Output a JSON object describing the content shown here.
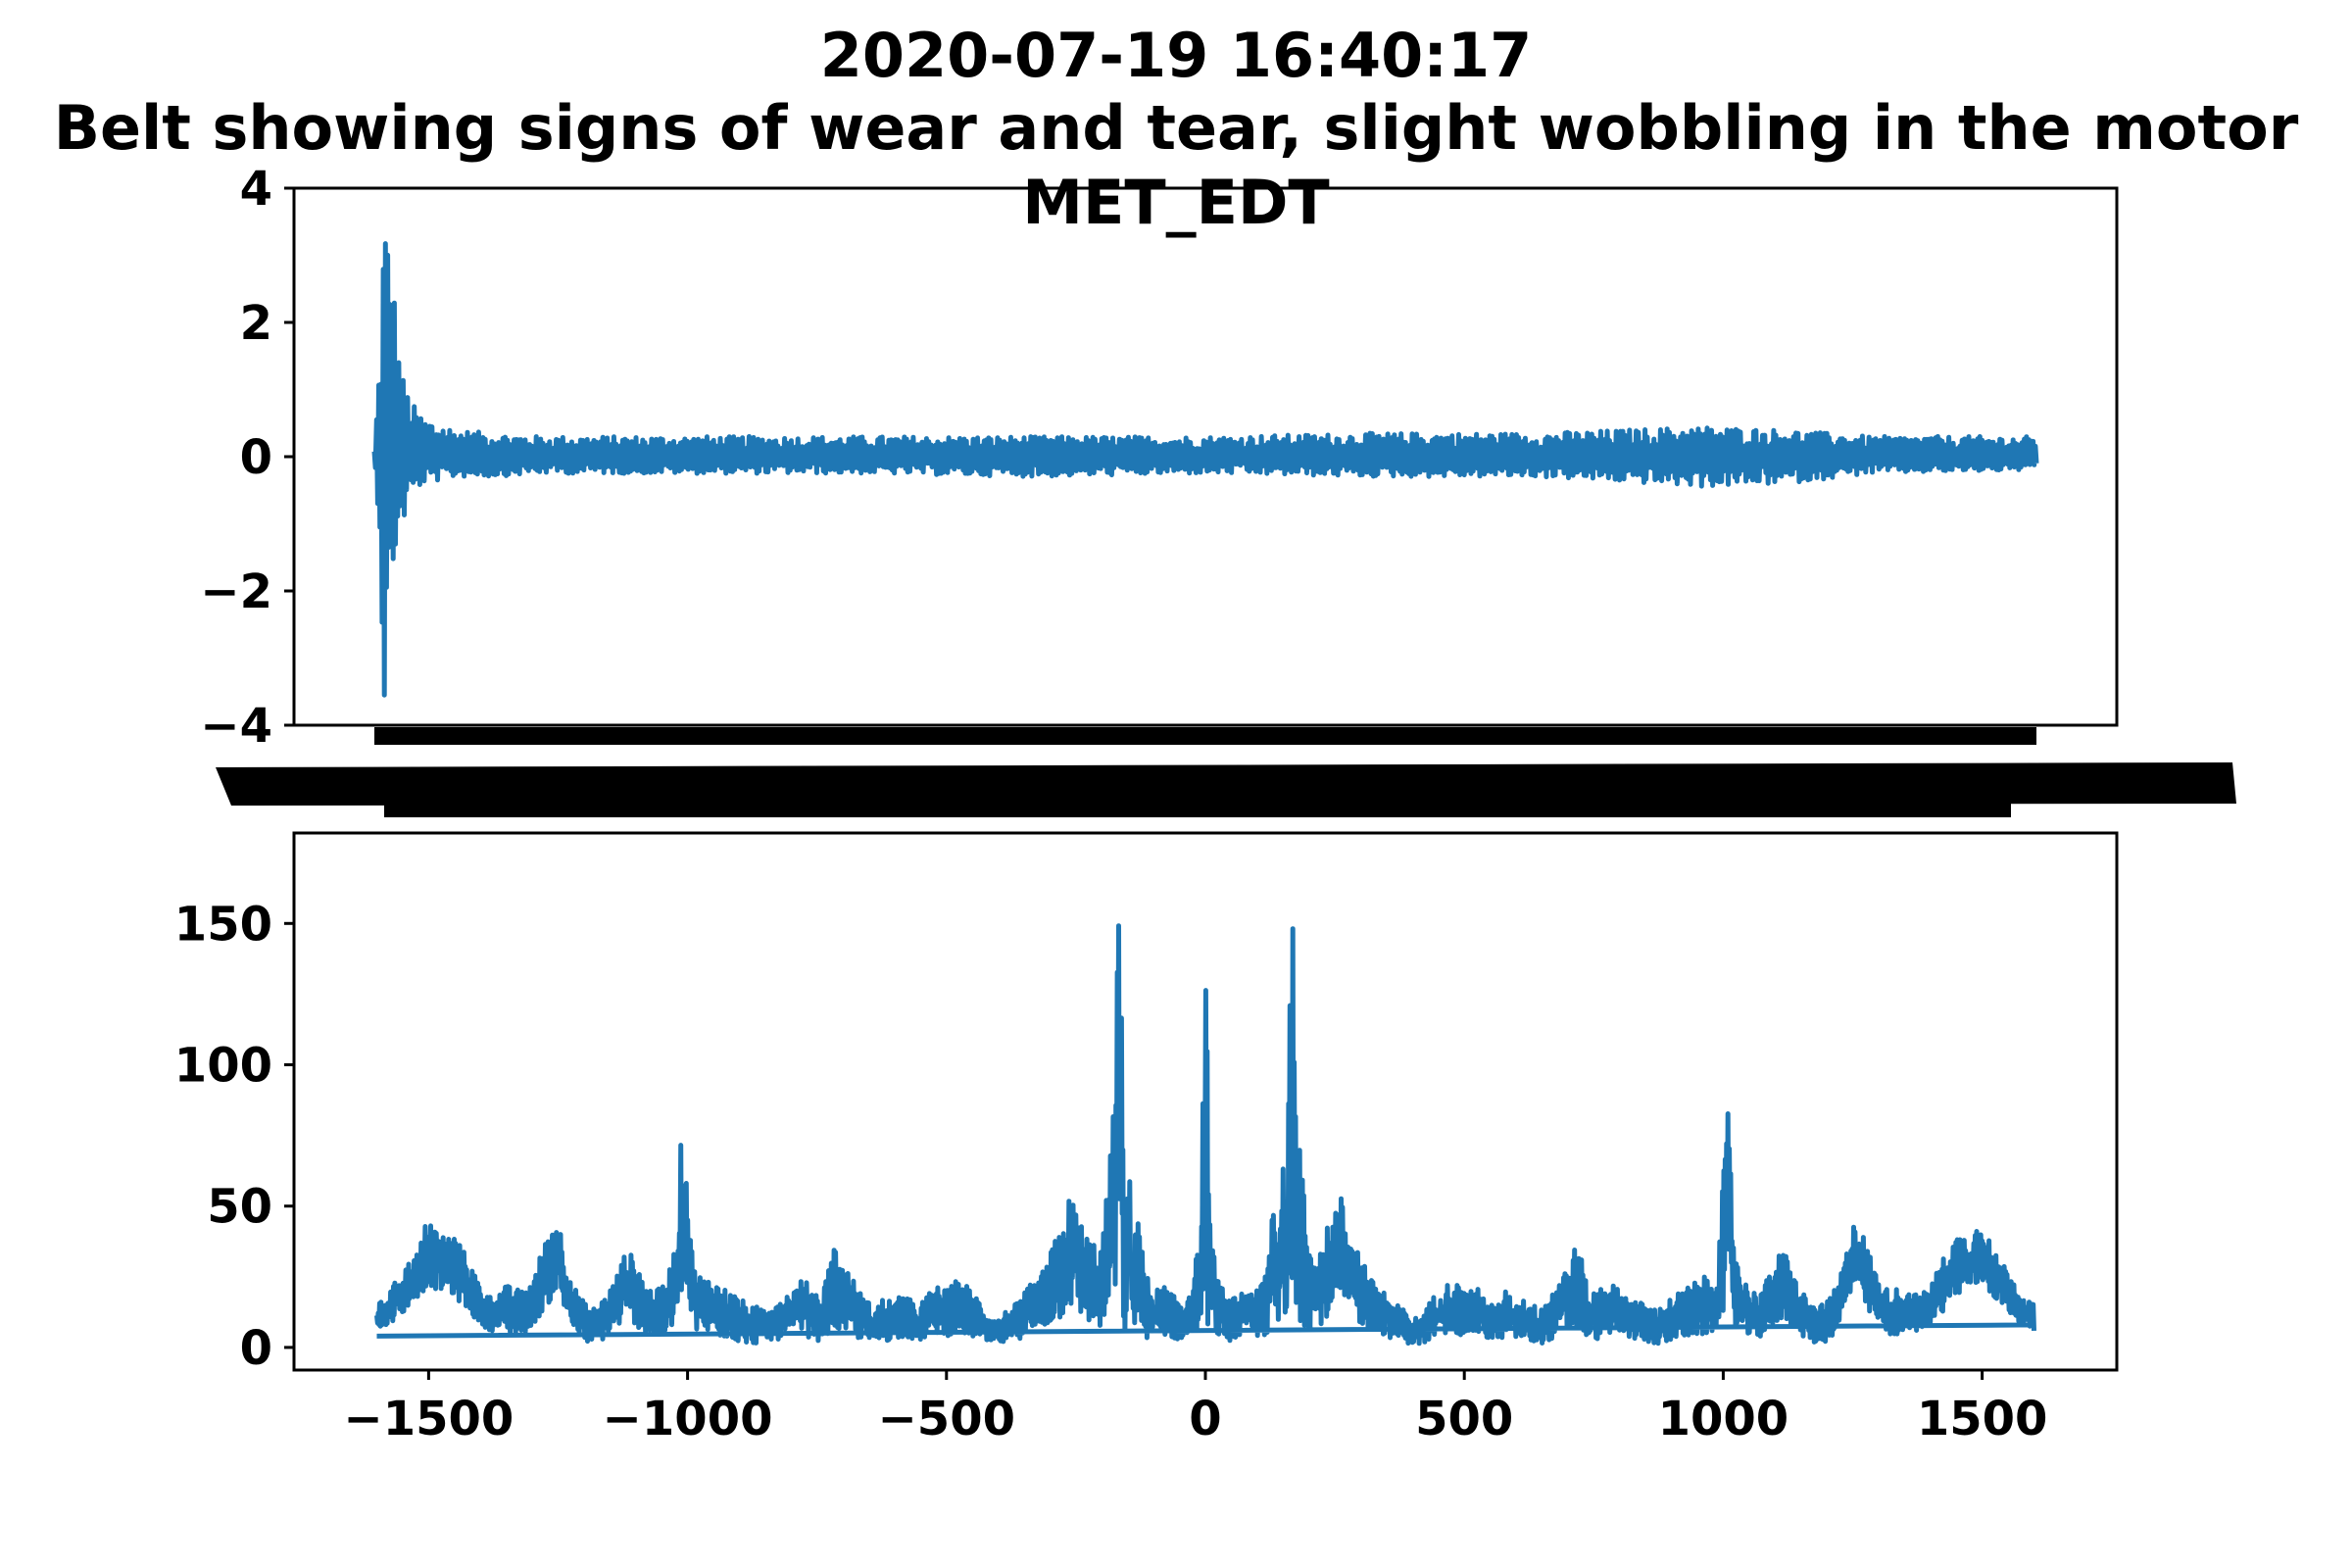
{
  "figure": {
    "title_line1": "2020-07-19 16:40:17",
    "title_line2": "Belt showing signs of wear and tear, slight wobbling in the motor",
    "title_line3": "MET_EDT"
  },
  "chart_data": [
    {
      "type": "line",
      "panel": "top",
      "title": "",
      "xlabel": "",
      "ylabel": "",
      "ylim": [
        -4,
        4
      ],
      "yticks": [
        -4,
        -2,
        0,
        2,
        4
      ],
      "ytick_labels": [
        "−4",
        "−2",
        "0",
        "2",
        "4"
      ],
      "xtick_labels_note": "x tick labels are overlapping and illegible (rendered as a solid black band)",
      "grid": false,
      "legend": "none",
      "color": "#1f77b4",
      "series": [
        {
          "envelope": {
            "x": [
              0,
              0.003,
              0.006,
              0.009,
              0.012,
              0.016,
              0.02,
              0.025,
              0.03,
              0.04,
              0.05,
              0.07,
              0.1,
              0.2,
              0.3,
              0.4,
              0.5,
              0.6,
              0.7,
              0.8,
              0.85,
              0.9,
              1.0
            ],
            "upper": [
              0.1,
              1.5,
              4.0,
              3.2,
              2.5,
              1.3,
              1.0,
              0.7,
              0.6,
              0.5,
              0.4,
              0.35,
              0.3,
              0.3,
              0.3,
              0.3,
              0.3,
              0.35,
              0.35,
              0.45,
              0.4,
              0.3,
              0.3
            ],
            "lower": [
              -0.1,
              -1.0,
              -4.0,
              -2.7,
              -1.5,
              -1.2,
              -0.7,
              -0.5,
              -0.4,
              -0.35,
              -0.3,
              -0.3,
              -0.25,
              -0.25,
              -0.25,
              -0.3,
              -0.25,
              -0.3,
              -0.3,
              -0.45,
              -0.4,
              -0.25,
              -0.2
            ]
          }
        }
      ]
    },
    {
      "type": "line",
      "panel": "bottom",
      "title": "",
      "xlabel": "",
      "ylabel": "",
      "xlim": [
        -1760,
        1760
      ],
      "ylim": [
        -8,
        182
      ],
      "xticks": [
        -1500,
        -1000,
        -500,
        0,
        500,
        1000,
        1500
      ],
      "xtick_labels": [
        "−1500",
        "−1000",
        "−500",
        "0",
        "500",
        "1000",
        "1500"
      ],
      "yticks": [
        0,
        50,
        100,
        150
      ],
      "ytick_labels": [
        "0",
        "50",
        "100",
        "150"
      ],
      "grid": false,
      "legend": "none",
      "color": "#1f77b4",
      "series": [
        {
          "baseline": {
            "x": [
              -1600,
              1600
            ],
            "y": [
              4,
              8
            ]
          },
          "envelope": {
            "x": [
              -1600,
              -1580,
              -1550,
              -1520,
              -1500,
              -1480,
              -1450,
              -1420,
              -1400,
              -1380,
              -1350,
              -1320,
              -1300,
              -1280,
              -1260,
              -1250,
              -1240,
              -1220,
              -1200,
              -1180,
              -1160,
              -1140,
              -1120,
              -1100,
              -1080,
              -1060,
              -1040,
              -1020,
              -1010,
              -1000,
              -990,
              -980,
              -950,
              -920,
              -900,
              -880,
              -850,
              -820,
              -800,
              -780,
              -760,
              -740,
              -720,
              -700,
              -680,
              -660,
              -640,
              -620,
              -600,
              -580,
              -560,
              -540,
              -520,
              -500,
              -480,
              -460,
              -440,
              -420,
              -400,
              -380,
              -360,
              -340,
              -320,
              -300,
              -280,
              -260,
              -250,
              -240,
              -220,
              -200,
              -180,
              -165,
              -160,
              -155,
              -150,
              -140,
              -130,
              -120,
              -110,
              -100,
              -80,
              -60,
              -40,
              -20,
              -10,
              0,
              10,
              20,
              40,
              60,
              80,
              100,
              110,
              120,
              130,
              140,
              150,
              155,
              160,
              165,
              180,
              200,
              220,
              240,
              250,
              260,
              280,
              300,
              320,
              340,
              360,
              380,
              400,
              420,
              440,
              460,
              480,
              500,
              520,
              540,
              560,
              580,
              600,
              620,
              640,
              660,
              680,
              700,
              720,
              740,
              760,
              780,
              800,
              820,
              850,
              880,
              900,
              920,
              950,
              980,
              990,
              1000,
              1010,
              1020,
              1040,
              1060,
              1080,
              1100,
              1120,
              1140,
              1160,
              1180,
              1200,
              1220,
              1240,
              1250,
              1260,
              1280,
              1300,
              1320,
              1350,
              1380,
              1400,
              1420,
              1450,
              1480,
              1500,
              1520,
              1550,
              1580,
              1600
            ],
            "upper": [
              15,
              18,
              28,
              34,
              48,
              40,
              40,
              30,
              22,
              18,
              22,
              20,
              24,
              35,
              45,
              48,
              35,
              22,
              16,
              14,
              18,
              24,
              34,
              32,
              22,
              20,
              24,
              40,
              86,
              60,
              30,
              26,
              24,
              20,
              18,
              14,
              15,
              18,
              20,
              24,
              22,
              18,
              38,
              30,
              24,
              18,
              14,
              18,
              16,
              20,
              14,
              18,
              22,
              20,
              24,
              22,
              18,
              12,
              10,
              14,
              16,
              22,
              24,
              34,
              42,
              55,
              50,
              44,
              38,
              36,
              75,
              174,
              80,
              30,
              75,
              36,
              56,
              30,
              24,
              20,
              22,
              18,
              16,
              30,
              38,
              140,
              38,
              30,
              16,
              18,
              22,
              20,
              24,
              30,
              56,
              36,
              75,
              30,
              80,
              174,
              75,
              36,
              38,
              44,
              50,
              55,
              42,
              34,
              24,
              22,
              16,
              14,
              10,
              12,
              18,
              22,
              24,
              20,
              22,
              18,
              14,
              20,
              16,
              18,
              14,
              18,
              24,
              30,
              38,
              18,
              22,
              24,
              20,
              18,
              15,
              14,
              18,
              20,
              24,
              26,
              30,
              60,
              86,
              40,
              24,
              20,
              22,
              32,
              34,
              24,
              18,
              14,
              16,
              22,
              35,
              48,
              45,
              35,
              24,
              20,
              22,
              18,
              22,
              30,
              40,
              40,
              48,
              34,
              28,
              18,
              15
            ],
            "lower": [
              5,
              8,
              12,
              18,
              22,
              20,
              18,
              12,
              8,
              6,
              5,
              4,
              8,
              12,
              18,
              20,
              14,
              6,
              2,
              1,
              3,
              6,
              10,
              8,
              4,
              3,
              4,
              8,
              20,
              12,
              6,
              5,
              4,
              3,
              2,
              1,
              2,
              3,
              4,
              5,
              3,
              2,
              6,
              5,
              4,
              2,
              1,
              2,
              3,
              4,
              2,
              3,
              5,
              4,
              5,
              4,
              3,
              1,
              1,
              2,
              3,
              5,
              6,
              8,
              10,
              14,
              12,
              10,
              8,
              6,
              10,
              20,
              10,
              4,
              10,
              6,
              8,
              4,
              3,
              3,
              4,
              3,
              2,
              4,
              6,
              10,
              6,
              4,
              2,
              3,
              4,
              3,
              4,
              4,
              8,
              6,
              10,
              4,
              10,
              20,
              10,
              6,
              8,
              10,
              12,
              14,
              10,
              8,
              6,
              5,
              3,
              2,
              1,
              1,
              3,
              4,
              5,
              4,
              5,
              3,
              2,
              4,
              3,
              2,
              1,
              2,
              4,
              5,
              6,
              2,
              3,
              5,
              4,
              3,
              2,
              1,
              2,
              3,
              4,
              5,
              6,
              12,
              20,
              8,
              4,
              3,
              4,
              8,
              10,
              6,
              3,
              1,
              2,
              6,
              14,
              20,
              18,
              12,
              8,
              4,
              5,
              6,
              8,
              12,
              18,
              20,
              22,
              18,
              12,
              8,
              5
            ]
          }
        }
      ]
    }
  ]
}
